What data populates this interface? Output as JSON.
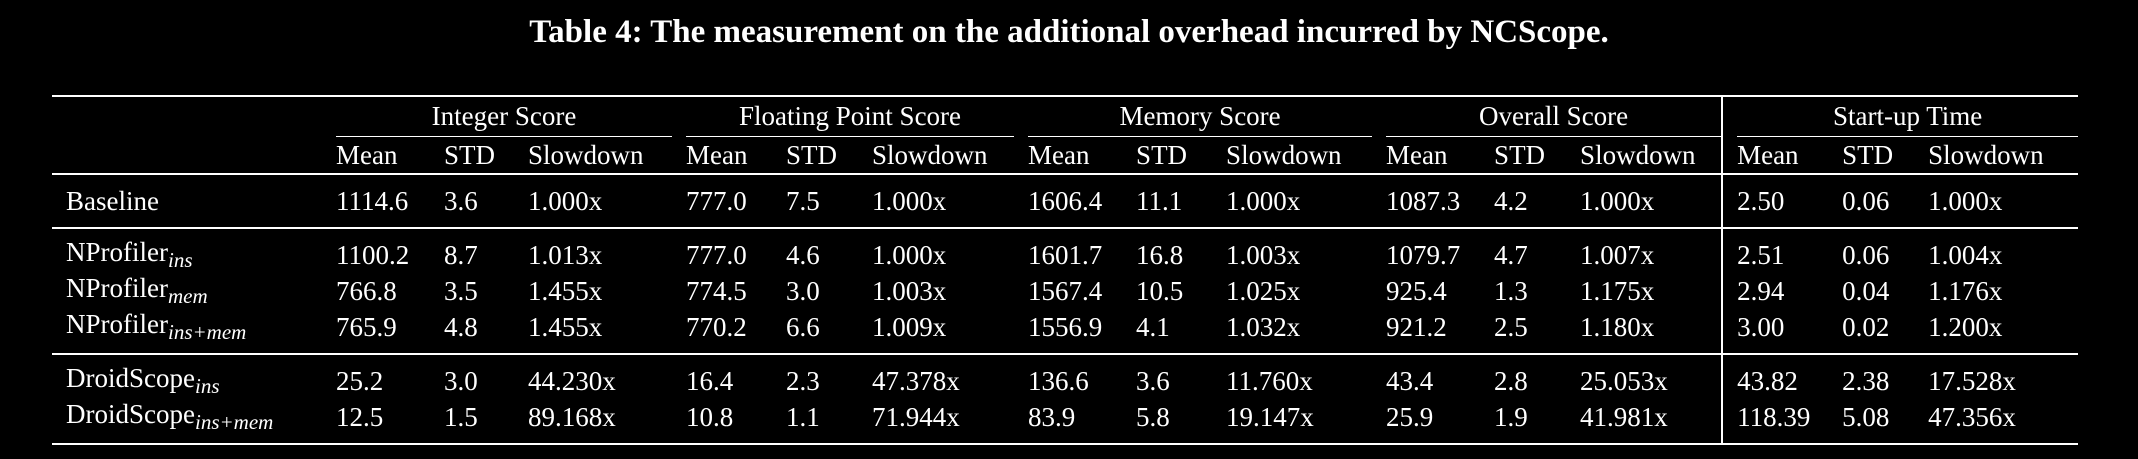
{
  "caption": "Table 4: The measurement on the additional overhead incurred by NCScope.",
  "groups": [
    "Integer Score",
    "Floating Point Score",
    "Memory Score",
    "Overall Score",
    "Start-up Time"
  ],
  "subheaders": [
    "Mean",
    "STD",
    "Slowdown"
  ],
  "rows": [
    {
      "name": "Baseline",
      "sub": "",
      "cells": [
        "1114.6",
        "3.6",
        "1.000x",
        "777.0",
        "7.5",
        "1.000x",
        "1606.4",
        "11.1",
        "1.000x",
        "1087.3",
        "4.2",
        "1.000x",
        "2.50",
        "0.06",
        "1.000x"
      ]
    },
    {
      "name": "NProfiler",
      "sub": "ins",
      "cells": [
        "1100.2",
        "8.7",
        "1.013x",
        "777.0",
        "4.6",
        "1.000x",
        "1601.7",
        "16.8",
        "1.003x",
        "1079.7",
        "4.7",
        "1.007x",
        "2.51",
        "0.06",
        "1.004x"
      ]
    },
    {
      "name": "NProfiler",
      "sub": "mem",
      "cells": [
        "766.8",
        "3.5",
        "1.455x",
        "774.5",
        "3.0",
        "1.003x",
        "1567.4",
        "10.5",
        "1.025x",
        "925.4",
        "1.3",
        "1.175x",
        "2.94",
        "0.04",
        "1.176x"
      ]
    },
    {
      "name": "NProfiler",
      "sub": "ins+mem",
      "cells": [
        "765.9",
        "4.8",
        "1.455x",
        "770.2",
        "6.6",
        "1.009x",
        "1556.9",
        "4.1",
        "1.032x",
        "921.2",
        "2.5",
        "1.180x",
        "3.00",
        "0.02",
        "1.200x"
      ]
    },
    {
      "name": "DroidScope",
      "sub": "ins",
      "cells": [
        "25.2",
        "3.0",
        "44.230x",
        "16.4",
        "2.3",
        "47.378x",
        "136.6",
        "3.6",
        "11.760x",
        "43.4",
        "2.8",
        "25.053x",
        "43.82",
        "2.38",
        "17.528x"
      ]
    },
    {
      "name": "DroidScope",
      "sub": "ins+mem",
      "cells": [
        "12.5",
        "1.5",
        "89.168x",
        "10.8",
        "1.1",
        "71.944x",
        "83.9",
        "5.8",
        "19.147x",
        "25.9",
        "1.9",
        "41.981x",
        "118.39",
        "5.08",
        "47.356x"
      ]
    }
  ]
}
